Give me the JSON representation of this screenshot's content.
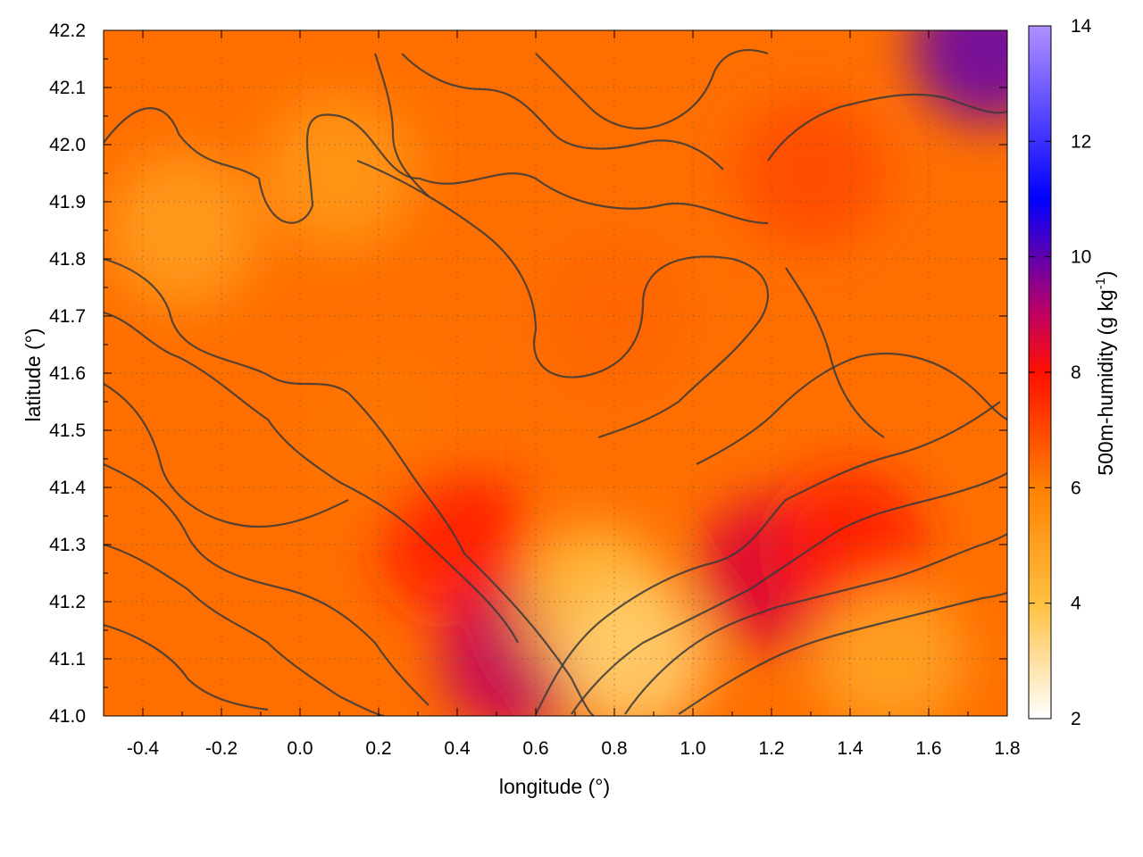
{
  "chart_data": {
    "type": "heatmap",
    "xlabel": "longitude (°)",
    "ylabel": "latitude (°)",
    "xlim": [
      -0.5,
      1.8
    ],
    "ylim": [
      41.0,
      42.2
    ],
    "x_ticks": [
      -0.4,
      -0.2,
      0.0,
      0.2,
      0.4,
      0.6,
      0.8,
      1.0,
      1.2,
      1.4,
      1.6,
      1.8
    ],
    "x_tick_labels": [
      "-0.4",
      "-0.2",
      "0.0",
      "0.2",
      "0.4",
      "0.6",
      "0.8",
      "1.0",
      "1.2",
      "1.4",
      "1.6",
      "1.8"
    ],
    "y_ticks": [
      41.0,
      41.1,
      41.2,
      41.3,
      41.4,
      41.5,
      41.6,
      41.7,
      41.8,
      41.9,
      42.0,
      42.1,
      42.2
    ],
    "y_tick_labels": [
      "41.0",
      "41.1",
      "41.2",
      "41.3",
      "41.4",
      "41.5",
      "41.6",
      "41.7",
      "41.8",
      "41.9",
      "42.0",
      "42.1",
      "42.2"
    ],
    "grid": true,
    "colorbar": {
      "label_main": "500m-humidity (g kg",
      "label_sup": "-1",
      "label_end": ")",
      "range": [
        2,
        14
      ],
      "ticks": [
        2,
        4,
        6,
        8,
        10,
        12,
        14
      ],
      "tick_labels": [
        "2",
        "4",
        "6",
        "8",
        "10",
        "12",
        "14"
      ],
      "colors": [
        {
          "value": 2,
          "color": "#ffffff"
        },
        {
          "value": 4,
          "color": "#ffc040"
        },
        {
          "value": 6,
          "color": "#ff8000"
        },
        {
          "value": 8,
          "color": "#ff1000"
        },
        {
          "value": 9,
          "color": "#c00060"
        },
        {
          "value": 11,
          "color": "#0000ff"
        },
        {
          "value": 14,
          "color": "#b090ff"
        }
      ]
    },
    "field_regions": [
      {
        "lon": -0.3,
        "lat": 41.85,
        "humidity": 5.0
      },
      {
        "lon": 0.1,
        "lat": 41.95,
        "humidity": 5.2
      },
      {
        "lon": 0.2,
        "lat": 41.5,
        "humidity": 6.2
      },
      {
        "lon": 0.4,
        "lat": 41.3,
        "humidity": 7.8
      },
      {
        "lon": 0.55,
        "lat": 41.1,
        "humidity": 9.0
      },
      {
        "lon": 0.75,
        "lat": 41.2,
        "humidity": 4.0
      },
      {
        "lon": 0.85,
        "lat": 41.1,
        "humidity": 3.5
      },
      {
        "lon": 1.2,
        "lat": 41.25,
        "humidity": 8.6
      },
      {
        "lon": 1.4,
        "lat": 41.3,
        "humidity": 7.8
      },
      {
        "lon": 1.5,
        "lat": 41.1,
        "humidity": 4.8
      },
      {
        "lon": 1.3,
        "lat": 41.95,
        "humidity": 7.0
      },
      {
        "lon": 1.75,
        "lat": 42.17,
        "humidity": 10.0
      },
      {
        "lon": 0.8,
        "lat": 41.7,
        "humidity": 6.5
      }
    ]
  }
}
